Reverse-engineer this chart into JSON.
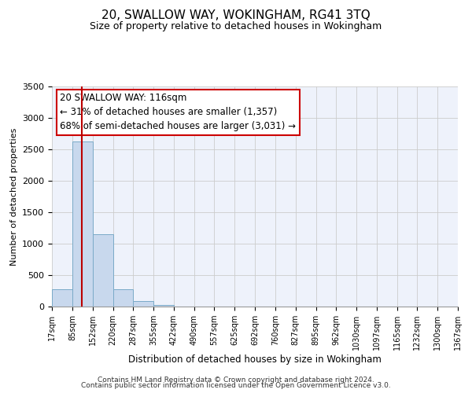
{
  "title": "20, SWALLOW WAY, WOKINGHAM, RG41 3TQ",
  "subtitle": "Size of property relative to detached houses in Wokingham",
  "xlabel": "Distribution of detached houses by size in Wokingham",
  "ylabel": "Number of detached properties",
  "bar_color": "#c8d8ed",
  "bar_edge_color": "#7aaac8",
  "background_color": "#eef2fb",
  "grid_color": "#cccccc",
  "vline_color": "#bb0000",
  "vline_x": 116,
  "annotation_text": "20 SWALLOW WAY: 116sqm\n← 31% of detached houses are smaller (1,357)\n68% of semi-detached houses are larger (3,031) →",
  "bin_edges": [
    17,
    85,
    152,
    220,
    287,
    355,
    422,
    490,
    557,
    625,
    692,
    760,
    827,
    895,
    962,
    1030,
    1097,
    1165,
    1232,
    1300,
    1367
  ],
  "bin_counts": [
    270,
    2630,
    1150,
    280,
    90,
    30,
    0,
    0,
    0,
    0,
    0,
    0,
    0,
    0,
    0,
    0,
    0,
    0,
    0,
    0
  ],
  "ylim": [
    0,
    3500
  ],
  "tick_labels": [
    "17sqm",
    "85sqm",
    "152sqm",
    "220sqm",
    "287sqm",
    "355sqm",
    "422sqm",
    "490sqm",
    "557sqm",
    "625sqm",
    "692sqm",
    "760sqm",
    "827sqm",
    "895sqm",
    "962sqm",
    "1030sqm",
    "1097sqm",
    "1165sqm",
    "1232sqm",
    "1300sqm",
    "1367sqm"
  ],
  "footer_line1": "Contains HM Land Registry data © Crown copyright and database right 2024.",
  "footer_line2": "Contains public sector information licensed under the Open Government Licence v3.0.",
  "title_fontsize": 11,
  "subtitle_fontsize": 9,
  "xlabel_fontsize": 8.5,
  "ylabel_fontsize": 8,
  "tick_fontsize": 7,
  "annotation_fontsize": 8.5,
  "footer_fontsize": 6.5
}
